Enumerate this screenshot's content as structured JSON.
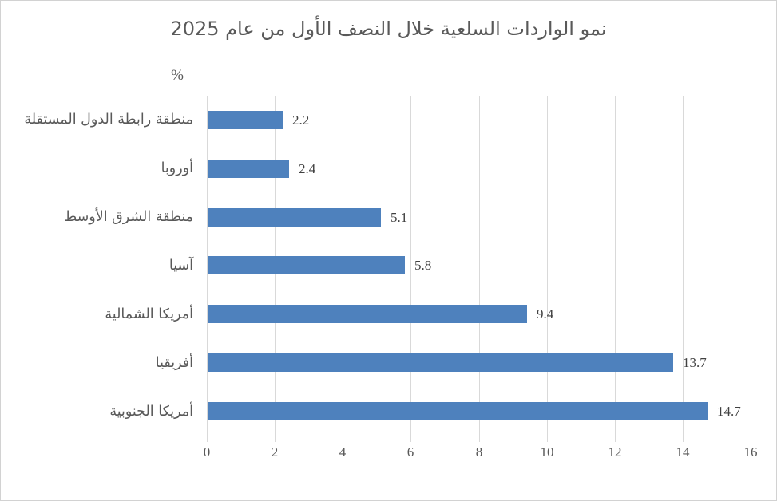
{
  "chart_data": {
    "type": "bar",
    "orientation": "horizontal",
    "title": "نمو الواردات السلعية خلال النصف الأول من عام 2025",
    "unit_label": "%",
    "categories": [
      "منطقة رابطة الدول المستقلة",
      "أوروبا",
      "منطقة الشرق الأوسط",
      "آسيا",
      "أمريكا الشمالية",
      "أفريقيا",
      "أمريكا الجنوبية"
    ],
    "values": [
      2.2,
      2.4,
      5.1,
      5.8,
      9.4,
      13.7,
      14.7
    ],
    "value_labels": [
      "2.2",
      "2.4",
      "5.1",
      "5.8",
      "9.4",
      "13.7",
      "14.7"
    ],
    "xlabel": "",
    "ylabel": "",
    "xlim": [
      0,
      16
    ],
    "x_ticks": [
      0,
      2,
      4,
      6,
      8,
      10,
      12,
      14,
      16
    ],
    "grid": true,
    "legend": "none",
    "bar_color": "#4E81BD",
    "gridline_color": "#D9D9D9",
    "title_color": "#595959",
    "axis_text_color": "#595959",
    "value_label_color": "#404040"
  }
}
